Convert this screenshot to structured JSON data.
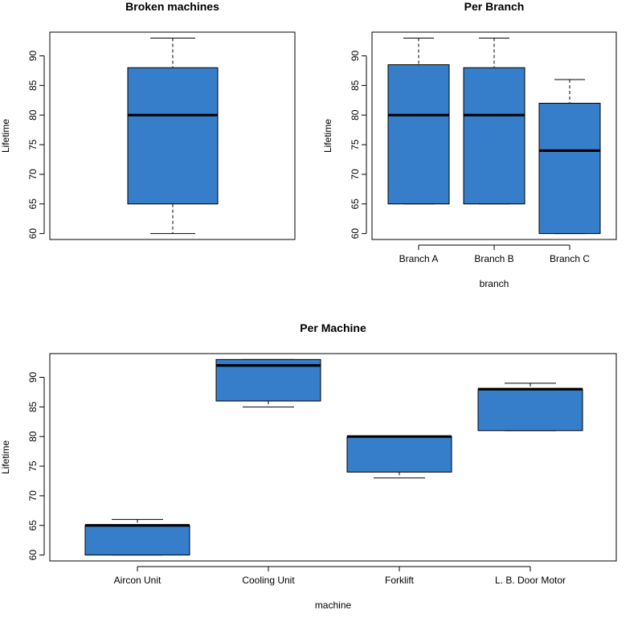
{
  "box_color": "#377eca",
  "chart_data": [
    {
      "type": "boxplot",
      "title": "Broken machines",
      "xlabel": "",
      "ylabel": "Lifetime",
      "ylim": [
        59,
        94
      ],
      "yticks": [
        60,
        65,
        70,
        75,
        80,
        85,
        90
      ],
      "categories": [
        ""
      ],
      "boxes": [
        {
          "min": 60,
          "q1": 65,
          "median": 80,
          "q3": 88,
          "max": 93
        }
      ]
    },
    {
      "type": "boxplot",
      "title": "Per Branch",
      "xlabel": "branch",
      "ylabel": "Lifetime",
      "ylim": [
        59,
        94
      ],
      "yticks": [
        60,
        65,
        70,
        75,
        80,
        85,
        90
      ],
      "categories": [
        "Branch A",
        "Branch B",
        "Branch C"
      ],
      "boxes": [
        {
          "min": 65,
          "q1": 65,
          "median": 80,
          "q3": 88.5,
          "max": 93
        },
        {
          "min": 65,
          "q1": 65,
          "median": 80,
          "q3": 88,
          "max": 93
        },
        {
          "min": 60,
          "q1": 60,
          "median": 74,
          "q3": 82,
          "max": 86
        }
      ]
    },
    {
      "type": "boxplot",
      "title": "Per Machine",
      "xlabel": "machine",
      "ylabel": "Lifetime",
      "ylim": [
        59,
        94
      ],
      "yticks": [
        60,
        65,
        70,
        75,
        80,
        85,
        90
      ],
      "categories": [
        "Aircon Unit",
        "Cooling Unit",
        "Forklift",
        "L. B. Door Motor"
      ],
      "boxes": [
        {
          "min": 60,
          "q1": 60,
          "median": 65,
          "q3": 65,
          "max": 66
        },
        {
          "min": 85,
          "q1": 86,
          "median": 92,
          "q3": 93,
          "max": 93
        },
        {
          "min": 73,
          "q1": 74,
          "median": 80,
          "q3": 80,
          "max": 80
        },
        {
          "min": 81,
          "q1": 81,
          "median": 88,
          "q3": 88,
          "max": 89
        }
      ]
    }
  ]
}
